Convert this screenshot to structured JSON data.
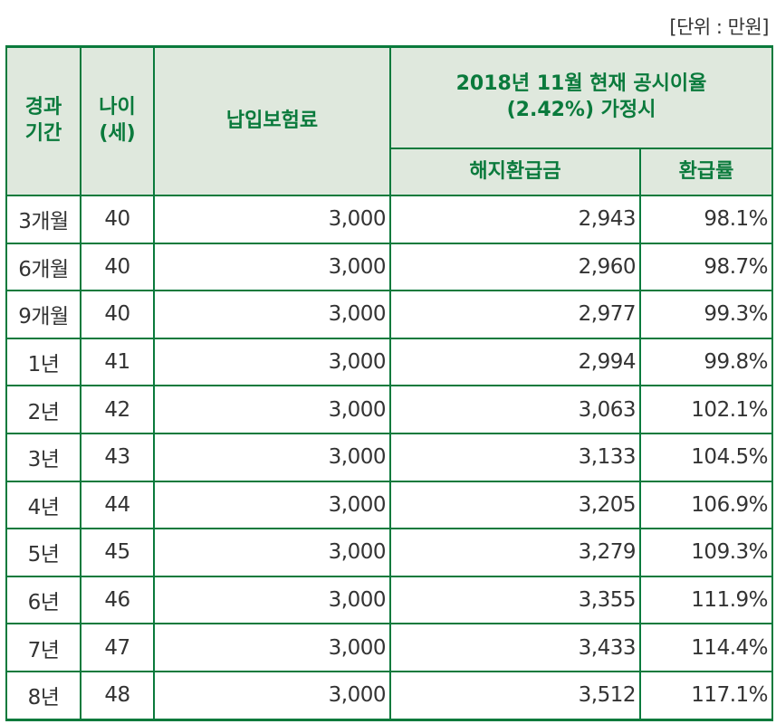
{
  "unit_label": "[단위 : 만원]",
  "header": {
    "period": "경과\n기간",
    "age": "나이\n(세)",
    "premium": "납입보험료",
    "scenario": "2018년 11월 현재 공시이율\n(2.42%) 가정시",
    "refund": "해지환급금",
    "rate": "환급률"
  },
  "theme": {
    "border": "#0a7a3c",
    "header_bg": "#dfe8dd",
    "header_text": "#0a7a3c",
    "body_text": "#333333"
  },
  "rows": [
    {
      "period": "3개월",
      "age": "40",
      "premium": "3,000",
      "refund": "2,943",
      "rate": "98.1%"
    },
    {
      "period": "6개월",
      "age": "40",
      "premium": "3,000",
      "refund": "2,960",
      "rate": "98.7%"
    },
    {
      "period": "9개월",
      "age": "40",
      "premium": "3,000",
      "refund": "2,977",
      "rate": "99.3%"
    },
    {
      "period": "1년",
      "age": "41",
      "premium": "3,000",
      "refund": "2,994",
      "rate": "99.8%"
    },
    {
      "period": "2년",
      "age": "42",
      "premium": "3,000",
      "refund": "3,063",
      "rate": "102.1%"
    },
    {
      "period": "3년",
      "age": "43",
      "premium": "3,000",
      "refund": "3,133",
      "rate": "104.5%"
    },
    {
      "period": "4년",
      "age": "44",
      "premium": "3,000",
      "refund": "3,205",
      "rate": "106.9%"
    },
    {
      "period": "5년",
      "age": "45",
      "premium": "3,000",
      "refund": "3,279",
      "rate": "109.3%"
    },
    {
      "period": "6년",
      "age": "46",
      "premium": "3,000",
      "refund": "3,355",
      "rate": "111.9%"
    },
    {
      "period": "7년",
      "age": "47",
      "premium": "3,000",
      "refund": "3,433",
      "rate": "114.4%"
    },
    {
      "period": "8년",
      "age": "48",
      "premium": "3,000",
      "refund": "3,512",
      "rate": "117.1%"
    }
  ]
}
